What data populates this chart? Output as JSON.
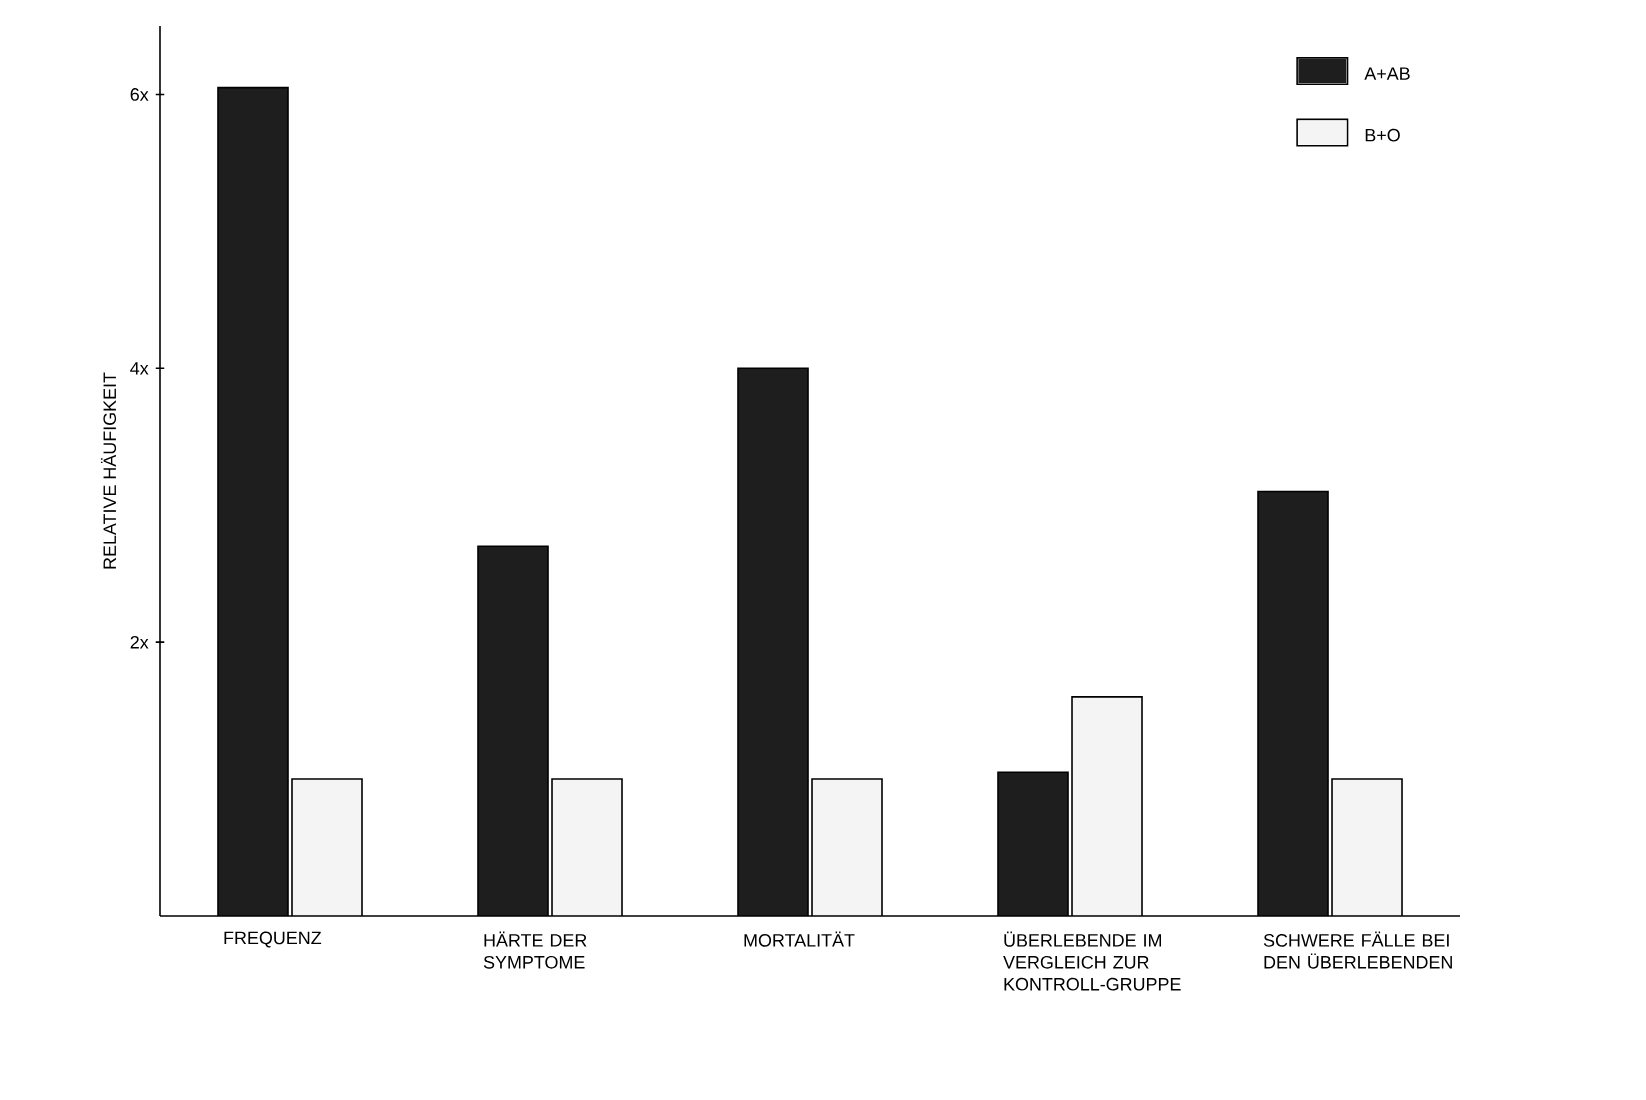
{
  "chart_data": {
    "type": "bar",
    "ylabel": "RELATIVE HÄUFIGKEIT",
    "categories": [
      "FREQUENZ",
      "HÄRTE DER SYMPTOME",
      "MORTALITÄT",
      "ÜBERLEBENDE IM VERGLEICH ZUR KONTROLL-GRUPPE",
      "SCHWERE FÄLLE BEI DEN ÜBERLEBENDEN"
    ],
    "series": [
      {
        "name": "A+AB",
        "color": "#1e1e1e",
        "values": [
          6.05,
          2.7,
          4.0,
          1.05,
          3.1
        ]
      },
      {
        "name": "B+O",
        "color": "#f4f4f4",
        "values": [
          1.0,
          1.0,
          1.0,
          1.6,
          1.0
        ]
      }
    ],
    "ylim": [
      0,
      6.5
    ],
    "yticks": [
      {
        "value": 2,
        "label": "2x"
      },
      {
        "value": 4,
        "label": "4x"
      },
      {
        "value": 6,
        "label": "6x"
      }
    ],
    "legend": "top right",
    "grid": false
  }
}
